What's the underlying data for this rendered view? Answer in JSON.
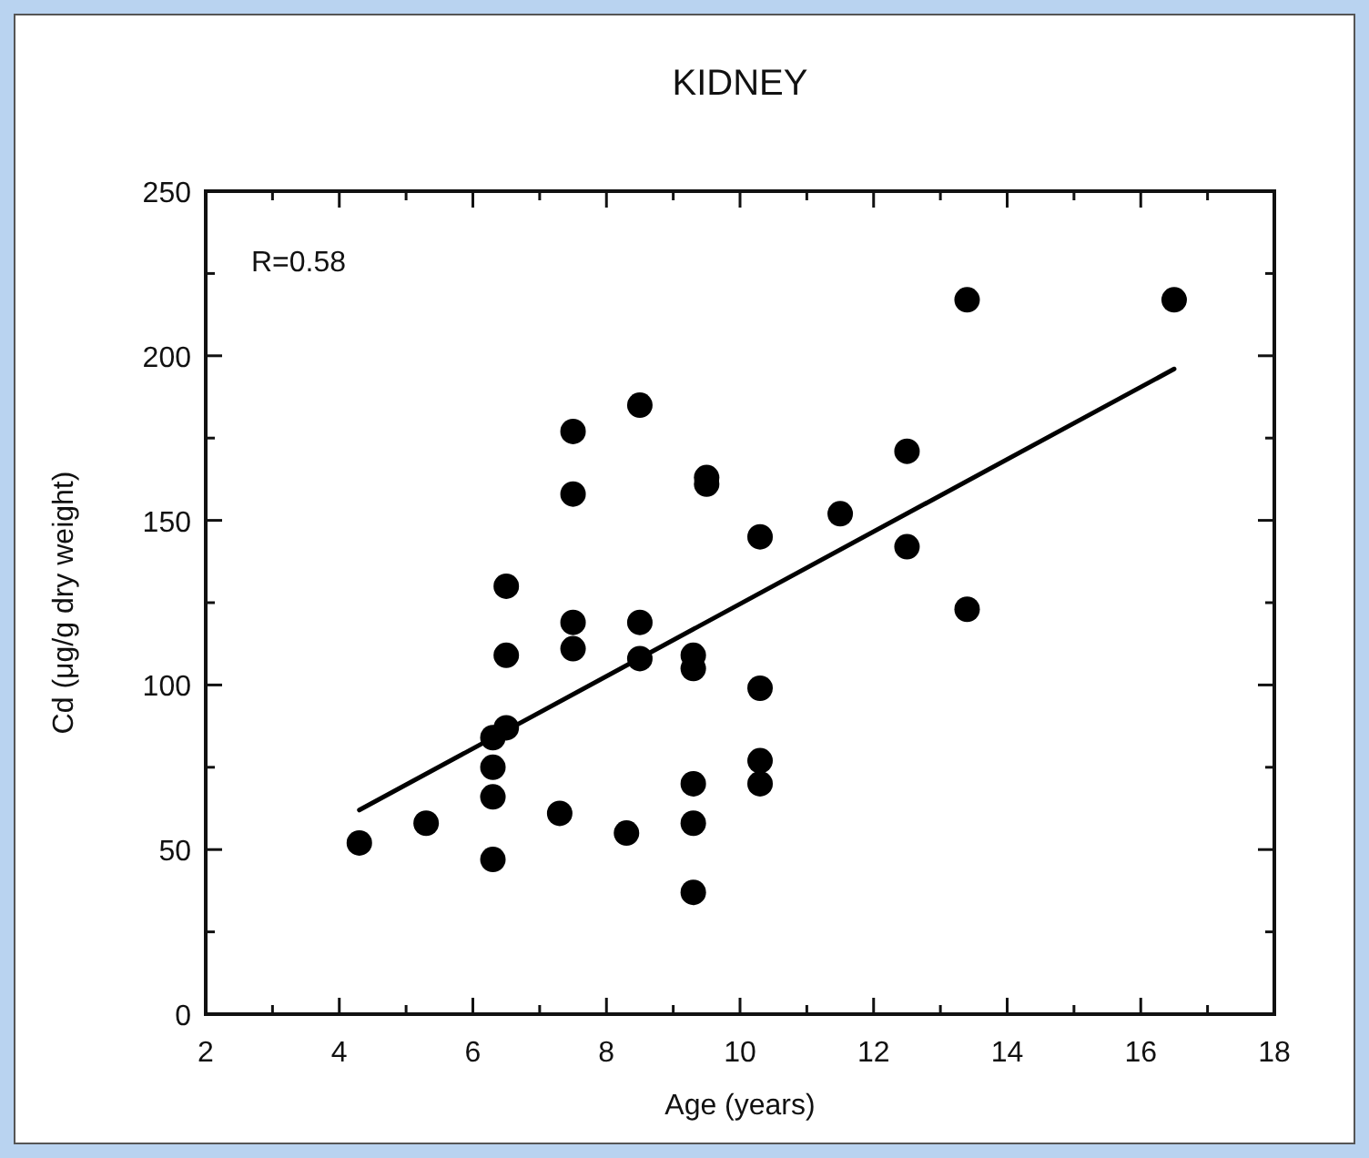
{
  "chart_data": {
    "type": "scatter",
    "title": "KIDNEY",
    "xlabel": "Age (years)",
    "ylabel": "Cd (μg/g dry weight)",
    "annotations": [
      "R=0.58"
    ],
    "xlim": [
      2,
      18
    ],
    "xticks": [
      2,
      {
        "value": 3,
        "label": null
      },
      4,
      {
        "value": 5,
        "label": null
      },
      6,
      {
        "value": 7,
        "label": null
      },
      8,
      {
        "value": 9,
        "label": null
      },
      10,
      {
        "value": 11,
        "label": null
      },
      12,
      {
        "value": 13,
        "label": null
      },
      14,
      {
        "value": 15,
        "label": null
      },
      16,
      {
        "value": 17,
        "label": null
      },
      18
    ],
    "ylim": [
      0,
      250
    ],
    "yticks": [
      0,
      {
        "value": 25,
        "label": null
      },
      50,
      {
        "value": 75,
        "label": null
      },
      100,
      {
        "value": 125,
        "label": null
      },
      150,
      {
        "value": 175,
        "label": null
      },
      200,
      {
        "value": 225,
        "label": null
      },
      250
    ],
    "grid": false,
    "marker": "circle",
    "series": [
      {
        "color": "#000000",
        "x": [
          4.3,
          5.3,
          6.3,
          6.3,
          6.3,
          6.3,
          6.5,
          6.5,
          6.5,
          7.3,
          7.5,
          7.5,
          7.5,
          7.5,
          8.3,
          8.5,
          8.5,
          8.5,
          9.3,
          9.3,
          9.3,
          9.3,
          9.3,
          9.5,
          9.5,
          10.3,
          10.3,
          10.3,
          10.3,
          11.5,
          12.5,
          12.5,
          13.4,
          13.4,
          16.5
        ],
        "values": [
          52,
          58,
          47,
          66,
          75,
          84,
          87,
          109,
          130,
          61,
          119,
          111,
          177,
          158,
          55,
          119,
          108,
          185,
          37,
          58,
          70,
          109,
          105,
          163,
          161,
          99,
          77,
          70,
          145,
          152,
          171,
          142,
          217,
          123,
          217
        ]
      },
      {
        "type": "line",
        "color": "#000000",
        "line_style": "solid",
        "marker": "none",
        "x": [
          4.3,
          16.5
        ],
        "values": [
          62,
          196
        ]
      }
    ]
  }
}
